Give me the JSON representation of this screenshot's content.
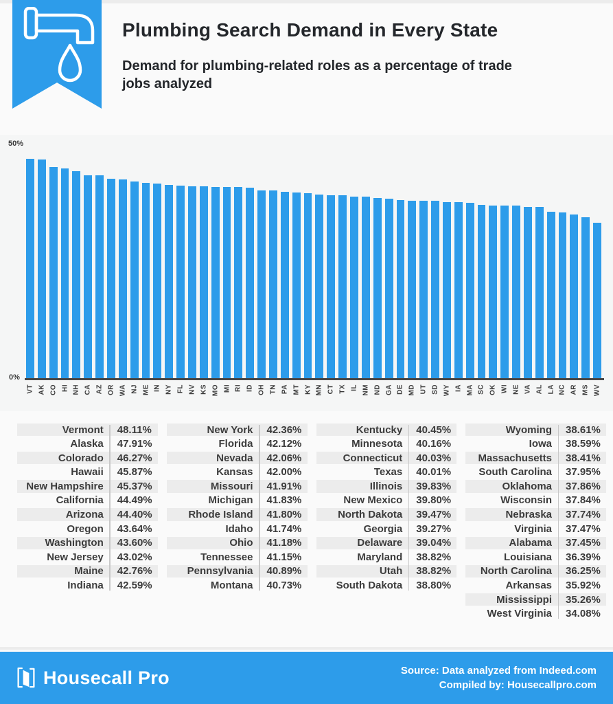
{
  "colors": {
    "accent": "#2D9CEA",
    "stripe": "#ececec",
    "table_text": "#3c3c3c"
  },
  "header": {
    "title": "Plumbing Search Demand in Every State",
    "subtitle": "Demand for plumbing-related roles as a percentage of trade jobs analyzed",
    "ribbon_icon": "faucet-drip-icon"
  },
  "chart_data": {
    "type": "bar",
    "title": "Plumbing Search Demand in Every State",
    "xlabel": "",
    "ylabel": "",
    "ylim": [
      0,
      50
    ],
    "y_tick_labels": {
      "top": "50%",
      "bottom": "0%"
    },
    "grid": false,
    "legend": false,
    "bar_color": "#2D9CEA",
    "categories": [
      "VT",
      "AK",
      "CO",
      "HI",
      "NH",
      "CA",
      "AZ",
      "OR",
      "WA",
      "NJ",
      "ME",
      "IN",
      "NY",
      "FL",
      "NV",
      "KS",
      "MO",
      "MI",
      "RI",
      "ID",
      "OH",
      "TN",
      "PA",
      "MT",
      "KY",
      "MN",
      "CT",
      "TX",
      "IL",
      "NM",
      "ND",
      "GA",
      "DE",
      "MD",
      "UT",
      "SD",
      "WY",
      "IA",
      "MA",
      "SC",
      "OK",
      "WI",
      "NE",
      "VA",
      "AL",
      "LA",
      "NC",
      "AR",
      "MS",
      "WV"
    ],
    "values": [
      48.11,
      47.91,
      46.27,
      45.87,
      45.37,
      44.49,
      44.4,
      43.64,
      43.6,
      43.02,
      42.76,
      42.59,
      42.36,
      42.12,
      42.06,
      42.0,
      41.91,
      41.83,
      41.8,
      41.74,
      41.18,
      41.15,
      40.89,
      40.73,
      40.45,
      40.16,
      40.03,
      40.01,
      39.83,
      39.8,
      39.47,
      39.27,
      39.04,
      38.82,
      38.82,
      38.8,
      38.61,
      38.59,
      38.41,
      37.95,
      37.86,
      37.84,
      37.74,
      37.47,
      37.45,
      36.39,
      36.25,
      35.92,
      35.26,
      34.08
    ]
  },
  "table": {
    "columns": [
      {
        "rows": [
          {
            "state": "Vermont",
            "value": "48.11%"
          },
          {
            "state": "Alaska",
            "value": "47.91%"
          },
          {
            "state": "Colorado",
            "value": "46.27%"
          },
          {
            "state": "Hawaii",
            "value": "45.87%"
          },
          {
            "state": "New Hampshire",
            "value": "45.37%"
          },
          {
            "state": "California",
            "value": "44.49%"
          },
          {
            "state": "Arizona",
            "value": "44.40%"
          },
          {
            "state": "Oregon",
            "value": "43.64%"
          },
          {
            "state": "Washington",
            "value": "43.60%"
          },
          {
            "state": "New Jersey",
            "value": "43.02%"
          },
          {
            "state": "Maine",
            "value": "42.76%"
          },
          {
            "state": "Indiana",
            "value": "42.59%"
          }
        ]
      },
      {
        "rows": [
          {
            "state": "New York",
            "value": "42.36%"
          },
          {
            "state": "Florida",
            "value": "42.12%"
          },
          {
            "state": "Nevada",
            "value": "42.06%"
          },
          {
            "state": "Kansas",
            "value": "42.00%"
          },
          {
            "state": "Missouri",
            "value": "41.91%"
          },
          {
            "state": "Michigan",
            "value": "41.83%"
          },
          {
            "state": "Rhode Island",
            "value": "41.80%"
          },
          {
            "state": "Idaho",
            "value": "41.74%"
          },
          {
            "state": "Ohio",
            "value": "41.18%"
          },
          {
            "state": "Tennessee",
            "value": "41.15%"
          },
          {
            "state": "Pennsylvania",
            "value": "40.89%"
          },
          {
            "state": "Montana",
            "value": "40.73%"
          }
        ]
      },
      {
        "rows": [
          {
            "state": "Kentucky",
            "value": "40.45%"
          },
          {
            "state": "Minnesota",
            "value": "40.16%"
          },
          {
            "state": "Connecticut",
            "value": "40.03%"
          },
          {
            "state": "Texas",
            "value": "40.01%"
          },
          {
            "state": "Illinois",
            "value": "39.83%"
          },
          {
            "state": "New Mexico",
            "value": "39.80%"
          },
          {
            "state": "North Dakota",
            "value": "39.47%"
          },
          {
            "state": "Georgia",
            "value": "39.27%"
          },
          {
            "state": "Delaware",
            "value": "39.04%"
          },
          {
            "state": "Maryland",
            "value": "38.82%"
          },
          {
            "state": "Utah",
            "value": "38.82%"
          },
          {
            "state": "South Dakota",
            "value": "38.80%"
          }
        ]
      },
      {
        "rows": [
          {
            "state": "Wyoming",
            "value": "38.61%"
          },
          {
            "state": "Iowa",
            "value": "38.59%"
          },
          {
            "state": "Massachusetts",
            "value": "38.41%"
          },
          {
            "state": "South Carolina",
            "value": "37.95%"
          },
          {
            "state": "Oklahoma",
            "value": "37.86%"
          },
          {
            "state": "Wisconsin",
            "value": "37.84%"
          },
          {
            "state": "Nebraska",
            "value": "37.74%"
          },
          {
            "state": "Virginia",
            "value": "37.47%"
          },
          {
            "state": "Alabama",
            "value": "37.45%"
          },
          {
            "state": "Louisiana",
            "value": "36.39%"
          },
          {
            "state": "North Carolina",
            "value": "36.25%"
          },
          {
            "state": "Arkansas",
            "value": "35.92%"
          },
          {
            "state": "Mississippi",
            "value": "35.26%"
          },
          {
            "state": "West Virginia",
            "value": "34.08%"
          }
        ]
      }
    ]
  },
  "footer": {
    "brand": "Housecall Pro",
    "brand_icon": "open-book-icon",
    "source_line": "Source: Data analyzed from Indeed.com",
    "compiled_line": "Compiled by: Housecallpro.com"
  }
}
